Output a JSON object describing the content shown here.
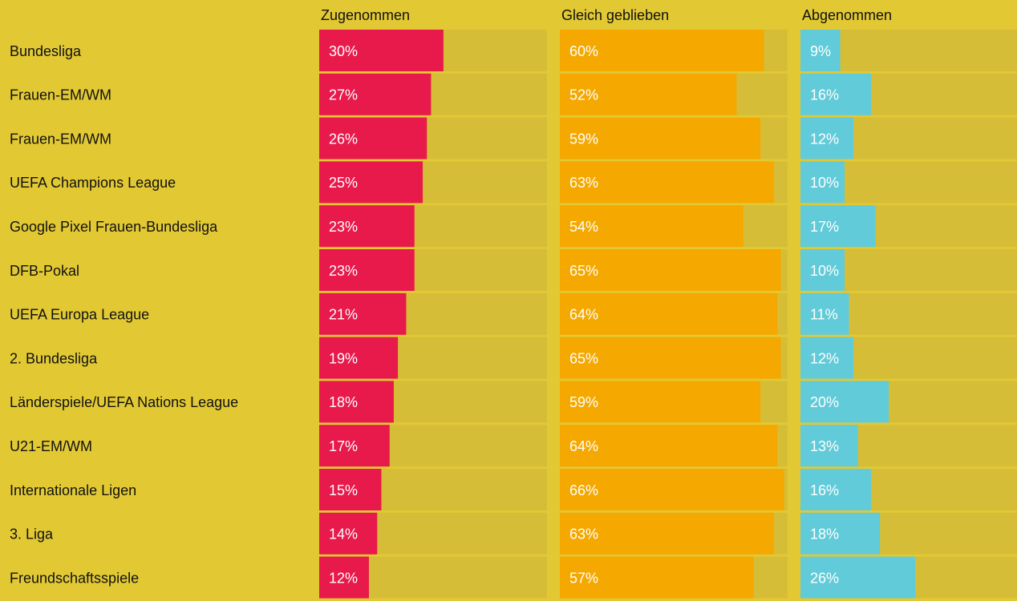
{
  "chart_data": {
    "type": "bar",
    "orientation": "horizontal",
    "categories": [
      "Bundesliga",
      "Frauen-EM/WM",
      "Frauen-EM/WM",
      "UEFA Champions League",
      "Google Pixel Frauen-Bundesliga",
      "DFB-Pokal",
      "UEFA Europa League",
      "2. Bundesliga",
      "Länderspiele/UEFA Nations League",
      "U21-EM/WM",
      "Internationale Ligen",
      "3. Liga",
      "Freundschaftsspiele"
    ],
    "series": [
      {
        "name": "Zugenommen",
        "color": "#e8194b",
        "xlim": [
          0,
          55
        ],
        "values": [
          30,
          27,
          26,
          25,
          23,
          23,
          21,
          19,
          18,
          17,
          15,
          14,
          12
        ],
        "value_labels": [
          "30%",
          "27%",
          "26%",
          "25%",
          "23%",
          "23%",
          "21%",
          "19%",
          "18%",
          "17%",
          "15%",
          "14%",
          "12%"
        ]
      },
      {
        "name": "Gleich geblieben",
        "color": "#f5a800",
        "xlim": [
          0,
          67
        ],
        "values": [
          60,
          52,
          59,
          63,
          54,
          65,
          64,
          65,
          59,
          64,
          66,
          63,
          57
        ],
        "value_labels": [
          "60%",
          "52%",
          "59%",
          "63%",
          "54%",
          "65%",
          "64%",
          "65%",
          "59%",
          "64%",
          "66%",
          "63%",
          "57%"
        ]
      },
      {
        "name": "Abgenommen",
        "color": "#62cbd9",
        "xlim": [
          0,
          49
        ],
        "values": [
          9,
          16,
          12,
          10,
          17,
          10,
          11,
          12,
          20,
          13,
          16,
          18,
          26
        ],
        "value_labels": [
          "9%",
          "16%",
          "12%",
          "10%",
          "17%",
          "10%",
          "11%",
          "12%",
          "20%",
          "13%",
          "16%",
          "18%",
          "26%"
        ]
      }
    ]
  }
}
